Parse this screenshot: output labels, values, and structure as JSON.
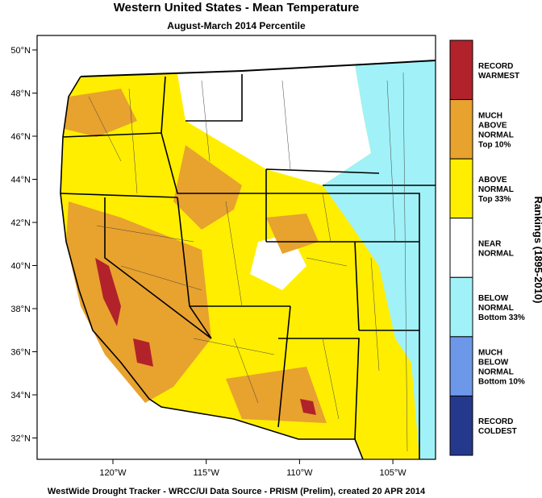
{
  "title": "Western United States - Mean Temperature",
  "subtitle": "August-March 2014 Percentile",
  "map": {
    "lat_labels": [
      "50°N",
      "48°N",
      "46°N",
      "44°N",
      "42°N",
      "40°N",
      "38°N",
      "36°N",
      "34°N",
      "32°N"
    ],
    "lon_labels": [
      "120°W",
      "115°W",
      "110°W",
      "105°W"
    ]
  },
  "legend": {
    "title": "Rankings (1895-2010)",
    "items": [
      {
        "lines": [
          "RECORD",
          "WARMEST"
        ],
        "color": "#b2222a"
      },
      {
        "lines": [
          "MUCH",
          "ABOVE",
          "NORMAL",
          "Top 10%"
        ],
        "color": "#e8a22e"
      },
      {
        "lines": [
          "ABOVE",
          "NORMAL",
          "Top 33%"
        ],
        "color": "#ffee00"
      },
      {
        "lines": [
          "NEAR",
          "NORMAL"
        ],
        "color": "#ffffff"
      },
      {
        "lines": [
          "BELOW",
          "NORMAL",
          "Bottom 33%"
        ],
        "color": "#a0f2f8"
      },
      {
        "lines": [
          "MUCH",
          "BELOW",
          "NORMAL",
          "Bottom 10%"
        ],
        "color": "#6d98ea"
      },
      {
        "lines": [
          "RECORD",
          "COLDEST"
        ],
        "color": "#25398c"
      }
    ]
  },
  "footer": "WestWide Drought Tracker - WRCC/UI  Data Source - PRISM (Prelim), created 20 APR 2014"
}
